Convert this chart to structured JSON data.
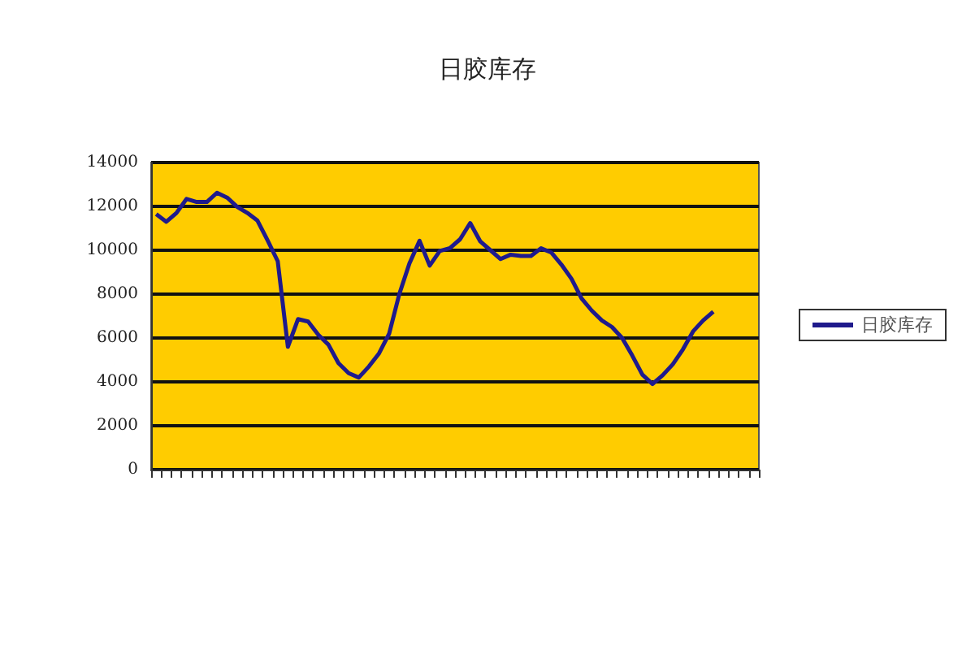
{
  "chart_data": {
    "type": "line",
    "title": "日胶库存",
    "categories": [
      null,
      null,
      null,
      null,
      null,
      null,
      null,
      null,
      null,
      null,
      null,
      null,
      null,
      null,
      null,
      null,
      null,
      null,
      null,
      null,
      null,
      null,
      null,
      null,
      null,
      null,
      null,
      null,
      null,
      null,
      null,
      null,
      null,
      null,
      null,
      null,
      null,
      null,
      null,
      null,
      null,
      null,
      null,
      null,
      null,
      null,
      null,
      null,
      null,
      null,
      null,
      null,
      null,
      null,
      null,
      null,
      null,
      null,
      null,
      null
    ],
    "series": [
      {
        "name": "日胶库存",
        "color": "#1f1a8c",
        "values": [
          11650,
          11300,
          11700,
          12340,
          12200,
          12200,
          12620,
          12400,
          11980,
          11700,
          11350,
          10450,
          9500,
          5600,
          6860,
          6750,
          6150,
          5700,
          4850,
          4400,
          4200,
          4700,
          5300,
          6200,
          8000,
          9400,
          10430,
          9300,
          9970,
          10100,
          10500,
          11240,
          10400,
          10000,
          9600,
          9800,
          9740,
          9740,
          10090,
          9900,
          9350,
          8700,
          7800,
          7250,
          6800,
          6500,
          6000,
          5200,
          4330,
          3900,
          4300,
          4800,
          5480,
          6300,
          6800,
          7200,
          null,
          null,
          null,
          null
        ]
      }
    ],
    "ylim": [
      0,
      14000
    ],
    "yticks": [
      0,
      2000,
      4000,
      6000,
      8000,
      10000,
      12000,
      14000
    ],
    "grid": "y",
    "legend": "right",
    "tick_labels": "y",
    "line_style": "solid"
  }
}
